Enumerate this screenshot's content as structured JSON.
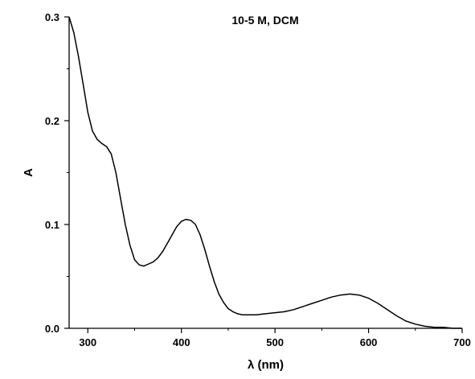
{
  "chart_data": {
    "type": "line",
    "title": "",
    "annotation": "10-5 M, DCM",
    "xlabel": "λ (nm)",
    "ylabel": "A",
    "xlim": [
      280,
      700
    ],
    "ylim": [
      0.0,
      0.3
    ],
    "xticks": [
      300,
      400,
      500,
      600,
      700
    ],
    "xtick_labels": [
      "300",
      "400",
      "500",
      "600",
      "700"
    ],
    "yticks": [
      0.0,
      0.1,
      0.2,
      0.3
    ],
    "ytick_labels": [
      "0.0",
      "0.1",
      "0.2",
      "0.3"
    ],
    "grid": false,
    "legend": null,
    "line_color": "#000000",
    "series": [
      {
        "x": [
          280,
          285,
          290,
          295,
          300,
          305,
          310,
          315,
          320,
          325,
          330,
          335,
          340,
          345,
          350,
          355,
          360,
          365,
          370,
          375,
          380,
          385,
          390,
          395,
          400,
          405,
          410,
          415,
          420,
          425,
          430,
          435,
          440,
          445,
          450,
          455,
          460,
          465,
          470,
          480,
          490,
          500,
          510,
          520,
          530,
          540,
          550,
          560,
          570,
          580,
          590,
          600,
          610,
          620,
          630,
          640,
          650,
          660,
          670,
          680,
          690,
          700
        ],
        "y": [
          0.3,
          0.285,
          0.262,
          0.235,
          0.208,
          0.19,
          0.182,
          0.178,
          0.175,
          0.168,
          0.15,
          0.125,
          0.1,
          0.08,
          0.066,
          0.061,
          0.06,
          0.062,
          0.064,
          0.068,
          0.074,
          0.082,
          0.09,
          0.098,
          0.103,
          0.105,
          0.104,
          0.1,
          0.09,
          0.076,
          0.06,
          0.045,
          0.033,
          0.025,
          0.019,
          0.016,
          0.014,
          0.013,
          0.013,
          0.013,
          0.014,
          0.015,
          0.016,
          0.018,
          0.021,
          0.024,
          0.027,
          0.03,
          0.032,
          0.033,
          0.032,
          0.029,
          0.024,
          0.018,
          0.012,
          0.007,
          0.004,
          0.002,
          0.001,
          0.001,
          0.0,
          0.0
        ]
      }
    ]
  }
}
